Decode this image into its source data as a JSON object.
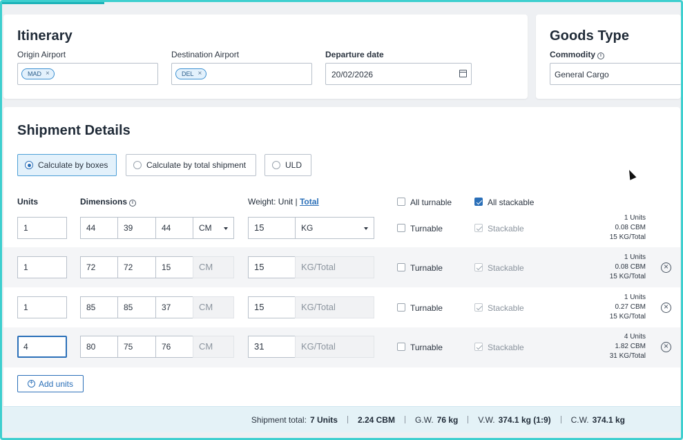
{
  "itinerary": {
    "title": "Itinerary",
    "origin_label": "Origin Airport",
    "origin_chip": "MAD",
    "destination_label": "Destination Airport",
    "destination_chip": "DEL",
    "departure_label": "Departure date",
    "departure_value": "20/02/2026"
  },
  "goods": {
    "title": "Goods Type",
    "commodity_label": "Commodity",
    "commodity_value": "General Cargo"
  },
  "shipment": {
    "title": "Shipment Details",
    "modes": [
      "Calculate by boxes",
      "Calculate by total shipment",
      "ULD"
    ],
    "selected_mode": "Calculate by boxes",
    "headers": {
      "units": "Units",
      "dimensions": "Dimensions",
      "weight_prefix": "Weight: Unit",
      "weight_sep": "|",
      "weight_total": "Total",
      "all_turnable": "All turnable",
      "all_stackable": "All stackable"
    },
    "all_turnable_checked": false,
    "all_stackable_checked": true,
    "rows": [
      {
        "units": "1",
        "l": "44",
        "w": "39",
        "h": "44",
        "dim_unit": "CM",
        "weight": "15",
        "weight_unit": "KG",
        "turnable": "Turnable",
        "stackable": "Stackable",
        "sum_units": "1 Units",
        "sum_cbm": "0.08 CBM",
        "sum_kg": "15 KG/Total"
      },
      {
        "units": "1",
        "l": "72",
        "w": "72",
        "h": "15",
        "dim_unit": "CM",
        "weight": "15",
        "weight_unit": "KG/Total",
        "turnable": "Turnable",
        "stackable": "Stackable",
        "sum_units": "1 Units",
        "sum_cbm": "0.08 CBM",
        "sum_kg": "15 KG/Total"
      },
      {
        "units": "1",
        "l": "85",
        "w": "85",
        "h": "37",
        "dim_unit": "CM",
        "weight": "15",
        "weight_unit": "KG/Total",
        "turnable": "Turnable",
        "stackable": "Stackable",
        "sum_units": "1 Units",
        "sum_cbm": "0.27 CBM",
        "sum_kg": "15 KG/Total"
      },
      {
        "units": "4",
        "l": "80",
        "w": "75",
        "h": "76",
        "dim_unit": "CM",
        "weight": "31",
        "weight_unit": "KG/Total",
        "turnable": "Turnable",
        "stackable": "Stackable",
        "sum_units": "4 Units",
        "sum_cbm": "1.82 CBM",
        "sum_kg": "31 KG/Total"
      }
    ],
    "add_units_label": "Add units"
  },
  "totals": {
    "label": "Shipment total:",
    "units": "7 Units",
    "cbm": "2.24 CBM",
    "gw_label": "G.W.",
    "gw_value": "76 kg",
    "vw_label": "V.W.",
    "vw_value": "374.1 kg (1:9)",
    "cw_label": "C.W.",
    "cw_value": "374.1 kg"
  },
  "colors": {
    "accent": "#2a6fb8",
    "frame": "#3ecfcf",
    "totals_bg": "#e4f2f7"
  }
}
